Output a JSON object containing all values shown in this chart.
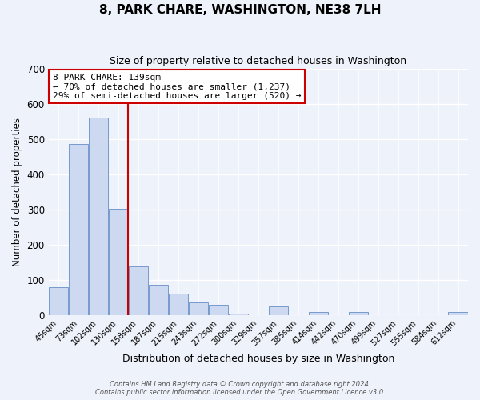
{
  "title": "8, PARK CHARE, WASHINGTON, NE38 7LH",
  "subtitle": "Size of property relative to detached houses in Washington",
  "xlabel": "Distribution of detached houses by size in Washington",
  "ylabel": "Number of detached properties",
  "bar_labels": [
    "45sqm",
    "73sqm",
    "102sqm",
    "130sqm",
    "158sqm",
    "187sqm",
    "215sqm",
    "243sqm",
    "272sqm",
    "300sqm",
    "329sqm",
    "357sqm",
    "385sqm",
    "414sqm",
    "442sqm",
    "470sqm",
    "499sqm",
    "527sqm",
    "555sqm",
    "584sqm",
    "612sqm"
  ],
  "bar_values": [
    80,
    485,
    560,
    302,
    138,
    85,
    62,
    35,
    30,
    5,
    0,
    25,
    0,
    8,
    0,
    8,
    0,
    0,
    0,
    0,
    8
  ],
  "bar_color": "#ccd9f0",
  "bar_edge_color": "#7799cc",
  "ylim": [
    0,
    700
  ],
  "yticks": [
    0,
    100,
    200,
    300,
    400,
    500,
    600,
    700
  ],
  "property_line_color": "#cc0000",
  "property_line_index": 3,
  "annotation_title": "8 PARK CHARE: 139sqm",
  "annotation_line1": "← 70% of detached houses are smaller (1,237)",
  "annotation_line2": "29% of semi-detached houses are larger (520) →",
  "annotation_box_color": "#cc0000",
  "footer1": "Contains HM Land Registry data © Crown copyright and database right 2024.",
  "footer2": "Contains public sector information licensed under the Open Government Licence v3.0.",
  "background_color": "#eef2fa",
  "grid_color": "#ffffff",
  "title_fontsize": 11,
  "subtitle_fontsize": 9
}
